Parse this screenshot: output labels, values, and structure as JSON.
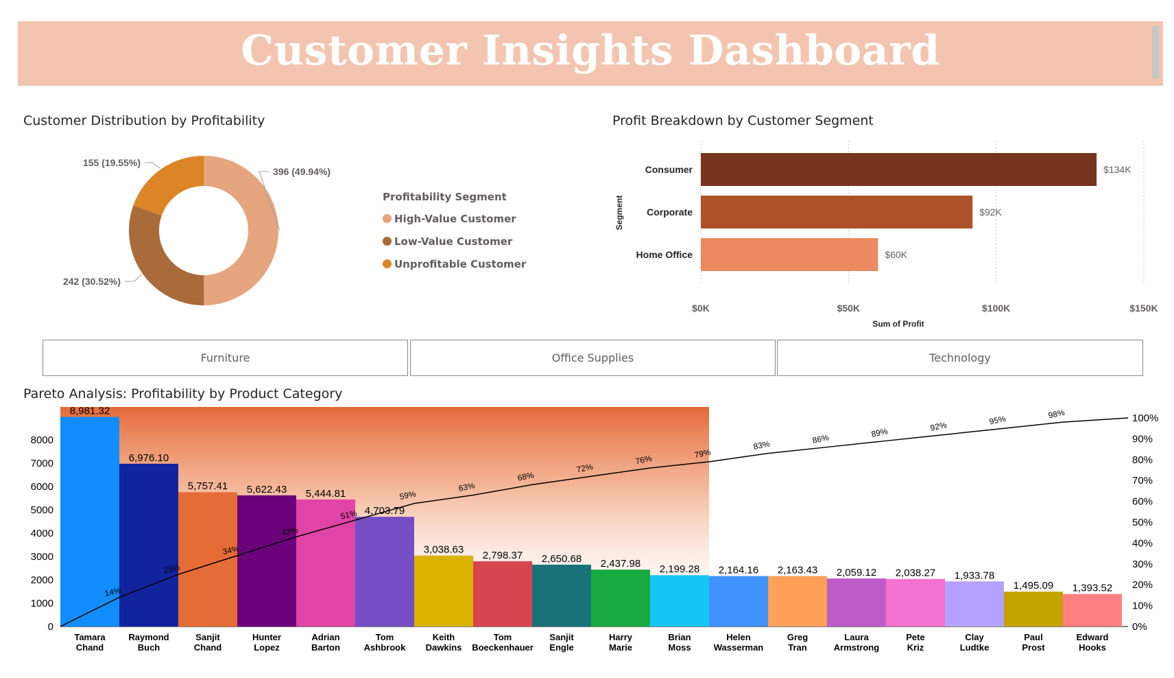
{
  "header": {
    "title": "Customer Insights Dashboard"
  },
  "donut": {
    "title": "Customer Distribution by Profitability",
    "legend_title": "Profitability Segment",
    "segments": [
      {
        "name": "High-Value Customer",
        "value": 396,
        "label": "396 (49.94%)",
        "color": "#e5a57e"
      },
      {
        "name": "Low-Value Customer",
        "value": 242,
        "label": "242 (30.52%)",
        "color": "#a96b3a"
      },
      {
        "name": "Unprofitable Customer",
        "value": 155,
        "label": "155 (19.55%)",
        "color": "#dc8526"
      }
    ]
  },
  "slicers": [
    "Furniture",
    "Office Supplies",
    "Technology"
  ],
  "bar": {
    "title": "Profit Breakdown by Customer Segment"
  },
  "pareto": {
    "title": "Pareto Analysis: Profitability by Product Category"
  },
  "chart_data": [
    {
      "type": "pie",
      "title": "Customer Distribution by Profitability",
      "categories": [
        "High-Value Customer",
        "Low-Value Customer",
        "Unprofitable Customer"
      ],
      "values": [
        396,
        242,
        155
      ],
      "percent": [
        49.94,
        30.52,
        19.55
      ],
      "legend": "right"
    },
    {
      "type": "bar",
      "orientation": "horizontal",
      "title": "Profit Breakdown by Customer Segment",
      "xlabel": "Sum of Profit",
      "ylabel": "Segment",
      "categories": [
        "Consumer",
        "Corporate",
        "Home Office"
      ],
      "values": [
        134000,
        92000,
        60000
      ],
      "data_labels": [
        "$134K",
        "$92K",
        "$60K"
      ],
      "colors": [
        "#76341e",
        "#ae5129",
        "#eb8a5f"
      ],
      "xlim": [
        0,
        150000
      ],
      "xticks": [
        "$0K",
        "$50K",
        "$100K",
        "$150K"
      ],
      "grid": "vertical dotted"
    },
    {
      "type": "bar",
      "subtype": "pareto",
      "title": "Pareto Analysis: Profitability by Product Category",
      "categories": [
        "Tamara Chand",
        "Raymond Buch",
        "Sanjit Chand",
        "Hunter Lopez",
        "Adrian Barton",
        "Tom Ashbrook",
        "Keith Dawkins",
        "Tom Boeckenhauer",
        "Sanjit Engle",
        "Harry Marie",
        "Brian Moss",
        "Helen Wasserman",
        "Greg Tran",
        "Laura Armstrong",
        "Pete Kriz",
        "Clay Ludtke",
        "Paul Prost",
        "Edward Hooks"
      ],
      "values": [
        8981.32,
        6976.1,
        5757.41,
        5622.43,
        5444.81,
        4703.79,
        3038.63,
        2798.37,
        2650.68,
        2437.98,
        2199.28,
        2164.16,
        2163.43,
        2059.12,
        2038.27,
        1933.78,
        1495.09,
        1393.52
      ],
      "value_labels": [
        "8,981.32",
        "6,976.10",
        "5,757.41",
        "5,622.43",
        "5,444.81",
        "4,703.79",
        "3,038.63",
        "2,798.37",
        "2,650.68",
        "2,437.98",
        "2,199.28",
        "2,164.16",
        "2,163.43",
        "2,059.12",
        "2,038.27",
        "1,933.78",
        "1,495.09",
        "1,393.52"
      ],
      "colors": [
        "#118dff",
        "#12239e",
        "#e66c37",
        "#6b007b",
        "#e044a7",
        "#744ec2",
        "#d9b300",
        "#d64550",
        "#197278",
        "#1aab40",
        "#15c6f4",
        "#4092ff",
        "#ffa058",
        "#be5dc9",
        "#f472d0",
        "#b5a1ff",
        "#c4a200",
        "#ff8080"
      ],
      "cumulative_percent": [
        14,
        25,
        34,
        43,
        51,
        59,
        63,
        68,
        72,
        76,
        79,
        83,
        86,
        89,
        92,
        95,
        98,
        100
      ],
      "ylim": [
        0,
        9000
      ],
      "yticks": [
        0,
        1000,
        2000,
        3000,
        4000,
        5000,
        6000,
        7000,
        8000
      ],
      "y2ticks": [
        "0%",
        "10%",
        "20%",
        "30%",
        "40%",
        "50%",
        "60%",
        "70%",
        "80%",
        "90%",
        "100%"
      ]
    }
  ]
}
